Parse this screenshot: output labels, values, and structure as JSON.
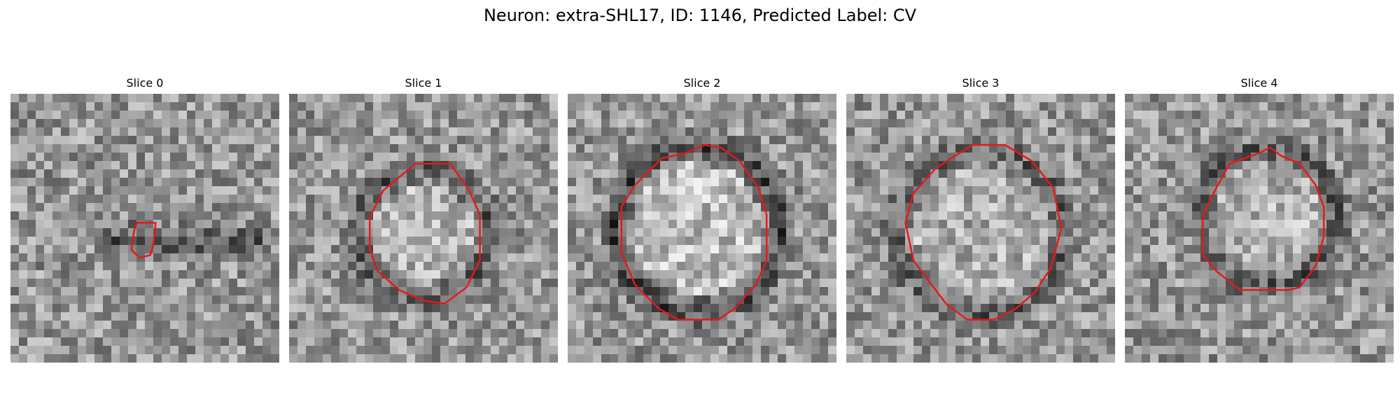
{
  "figure": {
    "title": "Neuron: extra-SHL17, ID: 1146, Predicted Label: CV"
  },
  "panels": [
    {
      "title": "Slice 0",
      "contour": [
        [
          0.47,
          0.48
        ],
        [
          0.54,
          0.48
        ],
        [
          0.53,
          0.57
        ],
        [
          0.52,
          0.6
        ],
        [
          0.48,
          0.61
        ],
        [
          0.45,
          0.58
        ],
        [
          0.46,
          0.51
        ]
      ],
      "dark_ring": 0.0
    },
    {
      "title": "Slice 1",
      "contour": [
        [
          0.47,
          0.26
        ],
        [
          0.6,
          0.26
        ],
        [
          0.67,
          0.36
        ],
        [
          0.71,
          0.45
        ],
        [
          0.71,
          0.62
        ],
        [
          0.66,
          0.72
        ],
        [
          0.58,
          0.78
        ],
        [
          0.5,
          0.77
        ],
        [
          0.41,
          0.73
        ],
        [
          0.33,
          0.66
        ],
        [
          0.3,
          0.58
        ],
        [
          0.3,
          0.46
        ],
        [
          0.35,
          0.36
        ],
        [
          0.41,
          0.31
        ]
      ],
      "dark_ring": 0.55
    },
    {
      "title": "Slice 2",
      "contour": [
        [
          0.51,
          0.19
        ],
        [
          0.57,
          0.2
        ],
        [
          0.64,
          0.25
        ],
        [
          0.71,
          0.35
        ],
        [
          0.74,
          0.45
        ],
        [
          0.74,
          0.62
        ],
        [
          0.7,
          0.71
        ],
        [
          0.62,
          0.8
        ],
        [
          0.56,
          0.84
        ],
        [
          0.41,
          0.84
        ],
        [
          0.34,
          0.8
        ],
        [
          0.25,
          0.71
        ],
        [
          0.2,
          0.59
        ],
        [
          0.2,
          0.42
        ],
        [
          0.25,
          0.34
        ],
        [
          0.35,
          0.24
        ],
        [
          0.44,
          0.22
        ]
      ],
      "dark_ring": 0.75
    },
    {
      "title": "Slice 3",
      "contour": [
        [
          0.47,
          0.19
        ],
        [
          0.59,
          0.19
        ],
        [
          0.69,
          0.25
        ],
        [
          0.77,
          0.35
        ],
        [
          0.8,
          0.5
        ],
        [
          0.76,
          0.65
        ],
        [
          0.7,
          0.74
        ],
        [
          0.63,
          0.8
        ],
        [
          0.55,
          0.84
        ],
        [
          0.45,
          0.84
        ],
        [
          0.37,
          0.78
        ],
        [
          0.31,
          0.7
        ],
        [
          0.25,
          0.62
        ],
        [
          0.22,
          0.48
        ],
        [
          0.25,
          0.37
        ],
        [
          0.33,
          0.28
        ],
        [
          0.39,
          0.24
        ]
      ],
      "dark_ring": 0.5
    },
    {
      "title": "Slice 4",
      "contour": [
        [
          0.5,
          0.22
        ],
        [
          0.54,
          0.2
        ],
        [
          0.58,
          0.23
        ],
        [
          0.65,
          0.26
        ],
        [
          0.71,
          0.34
        ],
        [
          0.74,
          0.42
        ],
        [
          0.74,
          0.53
        ],
        [
          0.71,
          0.64
        ],
        [
          0.65,
          0.72
        ],
        [
          0.61,
          0.73
        ],
        [
          0.43,
          0.73
        ],
        [
          0.34,
          0.66
        ],
        [
          0.29,
          0.6
        ],
        [
          0.29,
          0.45
        ],
        [
          0.34,
          0.35
        ],
        [
          0.39,
          0.26
        ]
      ],
      "dark_ring": 0.55
    }
  ],
  "colors": {
    "contour": "#e31a1c"
  }
}
